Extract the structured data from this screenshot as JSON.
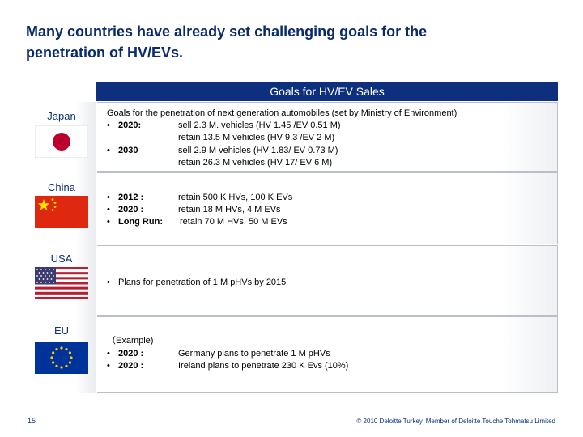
{
  "slide": {
    "title_line1": "Many countries have already set challenging goals for the",
    "title_line2": "penetration of HV/EVs.",
    "header": "Goals for HV/EV Sales"
  },
  "countries": {
    "japan": {
      "name": "Japan",
      "intro": "Goals for the penetration of next generation automobiles (set by Ministry of Environment)",
      "r1_label": "2020:",
      "r1_a": "sell 2.3 M. vehicles (HV 1.45 /EV 0.51 M)",
      "r1_b": "retain 13.5 M vehicles (HV 9.3 /EV 2 M)",
      "r2_label": "2030",
      "r2_a": "sell 2.9 M vehicles (HV 1.83/ EV 0.73 M)",
      "r2_b": "retain 26.3 M vehicles (HV 17/ EV 6 M)"
    },
    "china": {
      "name": "China",
      "r1_label": "2012 :",
      "r1": "retain 500 K HVs, 100 K EVs",
      "r2_label": "2020 :",
      "r2": "retain 18 M  HVs, 4 M EVs",
      "r3_label": "Long Run:",
      "r3": "retain 70 M HVs, 50 M EVs"
    },
    "usa": {
      "name": "USA",
      "r1": "Plans for penetration of 1 M pHVs by 2015"
    },
    "eu": {
      "name": "EU",
      "example": "（Example)",
      "r1_label": "2020 :",
      "r1": "Germany plans to penetrate 1 M pHVs",
      "r2_label": "2020 :",
      "r2": "Ireland plans to penetrate 230 K Evs (10%)"
    }
  },
  "footer": {
    "page": "15",
    "copyright": "© 2010 Deloitte Turkey. Member of Deloitte Touche Tohmatsu Limited"
  },
  "bullet": "•",
  "colors": {
    "navy": "#0d2f7d",
    "japan_red": "#bc002d",
    "china_red": "#de2910",
    "china_star": "#ffde00",
    "usa_red": "#b22234",
    "usa_blue": "#3c3b6e",
    "eu_blue": "#003399",
    "eu_star": "#ffcc00"
  }
}
